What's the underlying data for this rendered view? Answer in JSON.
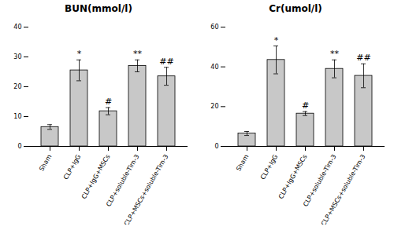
{
  "chart_data": [
    {
      "type": "bar",
      "title": "BUN(mmol/l)",
      "categories": [
        "Sham",
        "CLP+IgG",
        "CLP+IgG+MSCs",
        "CLP+soluble-Tim-3",
        "CLP+MSCs+soluble-Tim-3"
      ],
      "values": [
        6.5,
        25.5,
        11.8,
        27.0,
        23.5
      ],
      "errors": [
        0.8,
        3.5,
        1.2,
        2.0,
        3.0
      ],
      "annotations": [
        null,
        "*",
        "#",
        "**",
        "##"
      ],
      "color": "#c8c8c8",
      "ylim": [
        0,
        40
      ],
      "yticks": [
        0,
        10,
        20,
        30,
        40
      ],
      "grid": false
    },
    {
      "type": "bar",
      "title": "Cr(umol/l)",
      "categories": [
        "Sham",
        "CLP+IgG",
        "CLP+IgG+MSCs",
        "CLP+soluble-Tim-3",
        "CLP+MSCs+soluble-Tim-3"
      ],
      "values": [
        6.5,
        43.5,
        16.5,
        39.0,
        35.5
      ],
      "errors": [
        1.0,
        7.0,
        1.0,
        4.5,
        6.0
      ],
      "annotations": [
        null,
        "*",
        "#",
        "**",
        "##"
      ],
      "color": "#c8c8c8",
      "ylim": [
        0,
        60
      ],
      "yticks": [
        0,
        20,
        40,
        60
      ],
      "grid": false
    }
  ]
}
